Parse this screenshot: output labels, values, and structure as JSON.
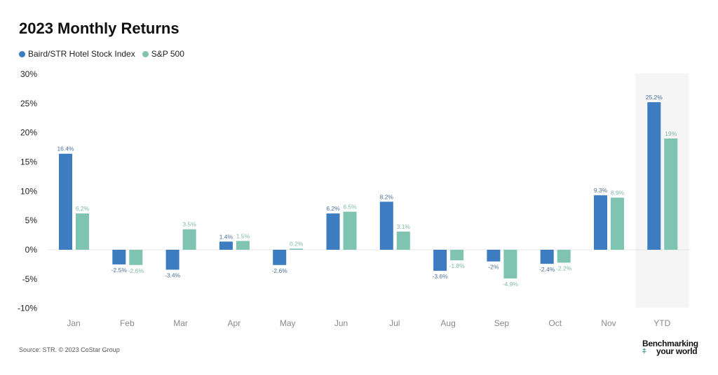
{
  "chart_data": {
    "type": "bar",
    "title": "2023 Monthly Returns",
    "categories": [
      "Jan",
      "Feb",
      "Mar",
      "Apr",
      "May",
      "Jun",
      "Jul",
      "Aug",
      "Sep",
      "Oct",
      "Nov",
      "YTD"
    ],
    "series": [
      {
        "name": "Baird/STR Hotel Stock Index",
        "color": "#3d7cc0",
        "values": [
          16.4,
          -2.5,
          -3.4,
          1.4,
          -2.6,
          6.2,
          8.2,
          -3.6,
          -2,
          -2.4,
          9.3,
          25.2
        ],
        "labels": [
          "16.4%",
          "-2.5%",
          "-3.4%",
          "1.4%",
          "-2.6%",
          "6.2%",
          "8.2%",
          "-3.6%",
          "-2%",
          "-2.4%",
          "9.3%",
          "25.2%"
        ]
      },
      {
        "name": "S&P 500",
        "color": "#7fc3b1",
        "values": [
          6.2,
          -2.6,
          3.5,
          1.5,
          0.2,
          6.5,
          3.1,
          -1.8,
          -4.9,
          -2.2,
          8.9,
          19
        ],
        "labels": [
          "6.2%",
          "-2.6%",
          "3.5%",
          "1.5%",
          "0.2%",
          "6.5%",
          "3.1%",
          "-1.8%",
          "-4.9%",
          "-2.2%",
          "8.9%",
          "19%"
        ]
      }
    ],
    "yticks": [
      "30%",
      "25%",
      "20%",
      "15%",
      "10%",
      "5%",
      "0%",
      "-5%",
      "-10%"
    ],
    "ytick_values": [
      30,
      25,
      20,
      15,
      10,
      5,
      0,
      -5,
      -10
    ],
    "ylim": [
      -10,
      30
    ],
    "highlighted_category": "YTD",
    "legend_position": "top-left"
  },
  "source": "Source: STR. © 2023 CoStar Group",
  "logo": {
    "line1": "Benchmarking",
    "line2": "your world"
  }
}
